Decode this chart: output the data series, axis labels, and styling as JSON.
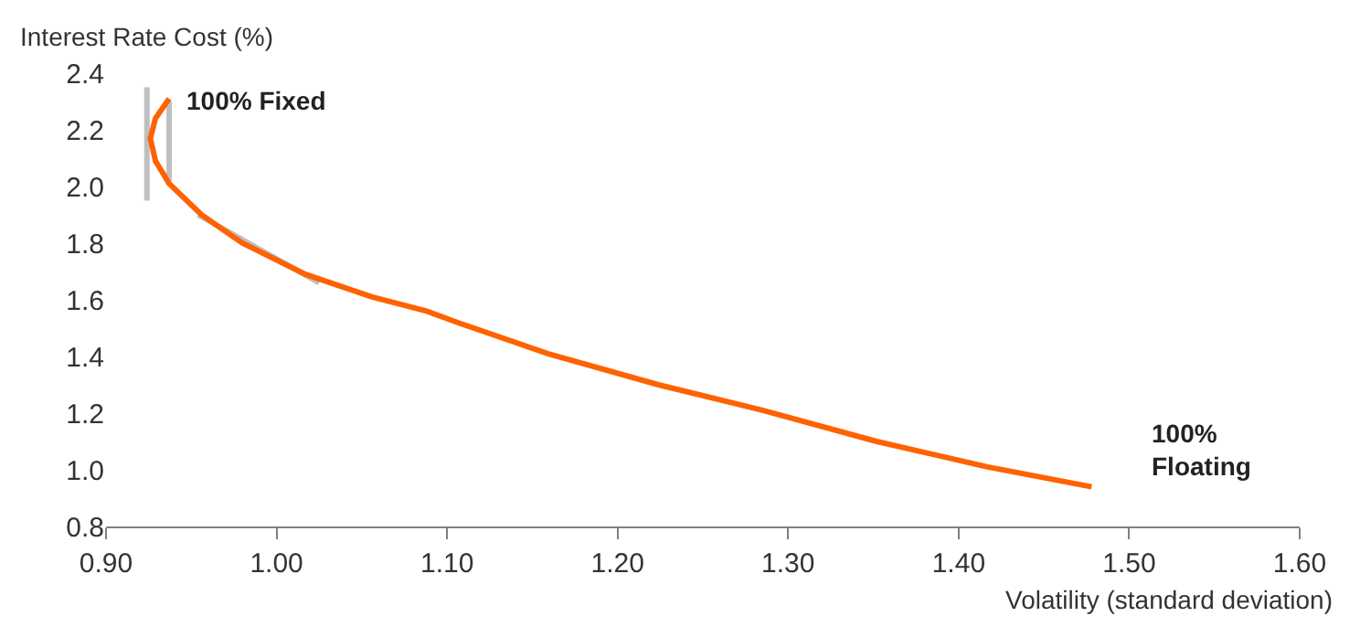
{
  "chart_data": {
    "type": "line",
    "xlabel": "Volatility (standard deviation)",
    "ylabel": "Interest Rate Cost (%)",
    "xlim": [
      0.9,
      1.6
    ],
    "xticks": [
      {
        "value": 0.9,
        "label": "0.90"
      },
      {
        "value": 1.0,
        "label": "1.00"
      },
      {
        "value": 1.1,
        "label": "1.10"
      },
      {
        "value": 1.2,
        "label": "1.20"
      },
      {
        "value": 1.3,
        "label": "1.30"
      },
      {
        "value": 1.4,
        "label": "1.40"
      },
      {
        "value": 1.5,
        "label": "1.50"
      },
      {
        "value": 1.6,
        "label": "1.60"
      }
    ],
    "ylim": [
      0.8,
      2.4
    ],
    "yticks": [
      {
        "value": 0.8,
        "label": "0.8"
      },
      {
        "value": 1.0,
        "label": "1.0"
      },
      {
        "value": 1.2,
        "label": "1.2"
      },
      {
        "value": 1.4,
        "label": "1.4"
      },
      {
        "value": 1.6,
        "label": "1.6"
      },
      {
        "value": 1.8,
        "label": "1.8"
      },
      {
        "value": 2.0,
        "label": "2.0"
      },
      {
        "value": 2.2,
        "label": "2.2"
      },
      {
        "value": 2.4,
        "label": "2.4"
      }
    ],
    "marker": "none",
    "line_style": "solid",
    "series": [
      {
        "color": "#bfbfbf",
        "x": [
          0.924,
          0.924
        ],
        "values": [
          2.35,
          1.95
        ]
      },
      {
        "color": "#bfbfbf",
        "x": [
          0.937,
          0.937
        ],
        "values": [
          2.3,
          2.02
        ]
      },
      {
        "color": "#bfbfbf",
        "x": [
          0.954,
          1.025
        ],
        "values": [
          1.9,
          1.66
        ]
      },
      {
        "color": "#ff6200",
        "x": [
          0.937,
          0.929,
          0.926,
          0.929,
          0.937,
          0.956,
          0.98,
          1.017,
          1.056,
          1.088,
          1.106,
          1.159,
          1.224,
          1.285,
          1.352,
          1.417,
          1.478
        ],
        "values": [
          2.31,
          2.24,
          2.17,
          2.09,
          2.01,
          1.9,
          1.8,
          1.69,
          1.61,
          1.56,
          1.52,
          1.41,
          1.3,
          1.21,
          1.1,
          1.01,
          0.94
        ]
      }
    ],
    "annotations": [
      "100% Fixed",
      "100%\nFloating"
    ]
  }
}
